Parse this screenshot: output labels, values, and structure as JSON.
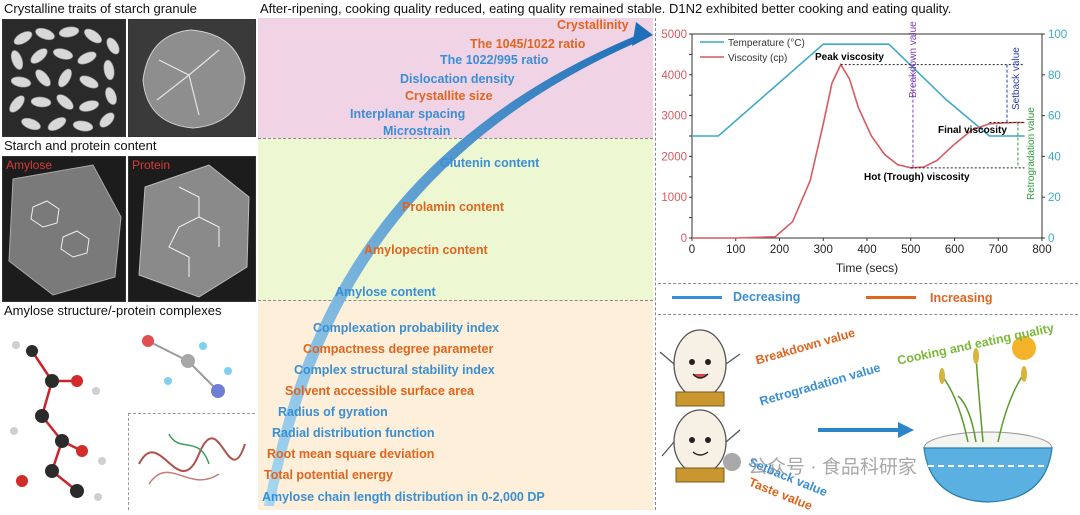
{
  "titles": {
    "crystalline": "Crystalline traits of starch granule",
    "starch_protein": "Starch and protein content",
    "amylose_structure": "Amylose structure/-protein complexes",
    "top": "After-ripening, cooking quality reduced, eating quality remained stable. D1N2 exhibited better cooking and eating quality."
  },
  "micrograph_labels": {
    "amylose": "Amylose",
    "protein": "Protein"
  },
  "indicators": {
    "crystalline": [
      {
        "text": "Crystallinity",
        "color": "orange"
      },
      {
        "text": "The 1045/1022 ratio",
        "color": "orange"
      },
      {
        "text": "The 1022/995 ratio",
        "color": "blue"
      },
      {
        "text": "Dislocation density",
        "color": "blue"
      },
      {
        "text": "Crystallite size",
        "color": "orange"
      },
      {
        "text": "Interplanar spacing",
        "color": "blue"
      },
      {
        "text": "Microstrain",
        "color": "blue"
      }
    ],
    "content": [
      {
        "text": "Glutenin content",
        "color": "blue"
      },
      {
        "text": "Prolamin content",
        "color": "orange"
      },
      {
        "text": "Amylopectin content",
        "color": "orange"
      },
      {
        "text": "Amylose content",
        "color": "blue"
      }
    ],
    "complexes": [
      {
        "text": "Complexation probability index",
        "color": "blue"
      },
      {
        "text": "Compactness degree parameter",
        "color": "orange"
      },
      {
        "text": "Complex structural stability index",
        "color": "blue"
      },
      {
        "text": "Solvent accessible surface area",
        "color": "orange"
      },
      {
        "text": "Radius of gyration",
        "color": "blue"
      },
      {
        "text": "Radial distribution function",
        "color": "blue"
      },
      {
        "text": "Root mean square deviation",
        "color": "orange"
      },
      {
        "text": "Total potential energy",
        "color": "orange"
      },
      {
        "text": "Amylose chain length distribution in 0-2,000 DP",
        "color": "blue"
      }
    ]
  },
  "legend": {
    "decreasing": "Decreasing",
    "increasing": "Increasing"
  },
  "colors": {
    "blue": "#3a8fd4",
    "orange": "#e0651f",
    "pink_band": "#f1d3e6",
    "green_band": "#edf7d2",
    "peach_band": "#fdefd9",
    "viscosity_line": "#d9595f",
    "temperature_line": "#3fa9c8"
  },
  "right_bottom": {
    "breakdown": "Breakdown value",
    "retrogradation": "Retrogradation value",
    "setback": "Setback value",
    "taste": "Taste value",
    "cooking_eating": "Cooking and eating quality",
    "watermark": "公众号 · 食品科研家"
  },
  "chart_data": {
    "type": "line",
    "xlabel": "Time (secs)",
    "ylabel_left": "",
    "ylabel_right": "",
    "xlim": [
      0,
      800
    ],
    "ylim_left": [
      0,
      5000
    ],
    "ylim_right": [
      0,
      100
    ],
    "xticks": [
      0,
      100,
      200,
      300,
      400,
      500,
      600,
      700,
      800
    ],
    "yticks_left": [
      0,
      500,
      1000,
      1500,
      2000,
      2500,
      3000,
      3500,
      4000,
      4500,
      5000
    ],
    "yticks_right": [
      0,
      20,
      40,
      60,
      80,
      100
    ],
    "legend_position": "top-left",
    "series": [
      {
        "name": "Temperature (°C)",
        "axis": "right",
        "x": [
          0,
          60,
          300,
          420,
          450,
          580,
          680,
          760
        ],
        "y": [
          50,
          50,
          95,
          95,
          95,
          68,
          50,
          50
        ]
      },
      {
        "name": "Viscosity (cp)",
        "axis": "left",
        "x": [
          0,
          100,
          190,
          230,
          270,
          300,
          320,
          340,
          360,
          380,
          410,
          440,
          470,
          500,
          530,
          560,
          600,
          640,
          680,
          710,
          740,
          760
        ],
        "y": [
          0,
          0,
          30,
          400,
          1400,
          2800,
          3800,
          4250,
          3900,
          3200,
          2500,
          2050,
          1800,
          1720,
          1740,
          1900,
          2300,
          2650,
          2800,
          2820,
          2830,
          2830
        ]
      }
    ],
    "annotations": [
      "Peak viscosity",
      "Breakdown value",
      "Setback value",
      "Final viscosity",
      "Hot (Trough) viscosity",
      "Retrogradation value"
    ]
  }
}
